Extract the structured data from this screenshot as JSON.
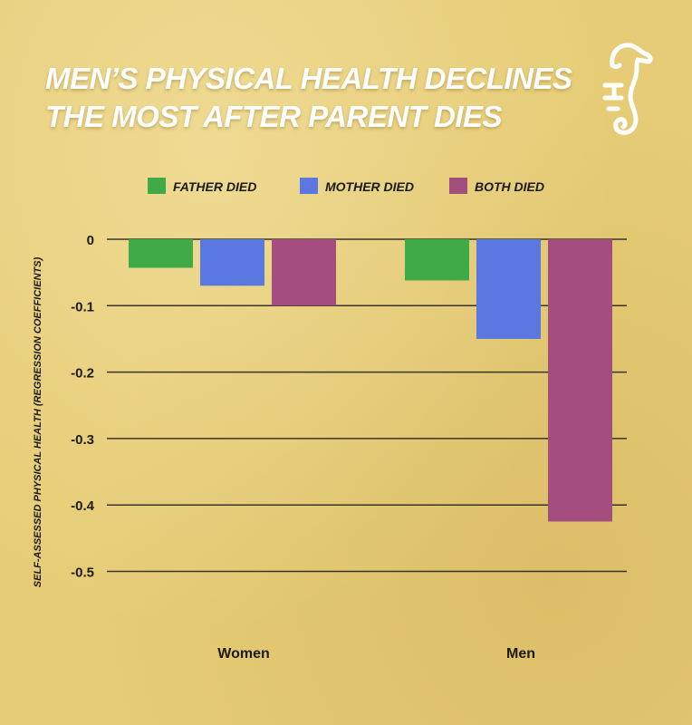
{
  "chart_data": {
    "type": "bar",
    "title": "MEN’S PHYSICAL HEALTH DECLINES THE MOST AFTER PARENT DIES",
    "title_lines": [
      "MEN’S PHYSICAL HEALTH DECLINES",
      "THE MOST AFTER PARENT DIES"
    ],
    "ylabel": "SELF-ASSESSED PHYSICAL HEALTH (REGRESSION COEFFICIENTS)",
    "xlabel": "",
    "categories": [
      "Women",
      "Men"
    ],
    "series": [
      {
        "name": "FATHER DIED",
        "color": "#3faa46",
        "values": [
          -0.043,
          -0.062
        ]
      },
      {
        "name": "MOTHER DIED",
        "color": "#5b77e0",
        "values": [
          -0.07,
          -0.15
        ]
      },
      {
        "name": "BOTH DIED",
        "color": "#a44d7f",
        "values": [
          -0.1,
          -0.425
        ]
      }
    ],
    "ylim": [
      -0.5,
      0
    ],
    "yticks": [
      0,
      -0.1,
      -0.2,
      -0.3,
      -0.4,
      -0.5
    ],
    "ytick_labels": [
      "0",
      "-0.1",
      "-0.2",
      "-0.3",
      "-0.4",
      "-0.5"
    ],
    "grid": true,
    "legend_position": "top"
  },
  "colors": {
    "background": "#e6cc76",
    "gridline": "#3a3428",
    "text": "#1c1a14",
    "title": "#ffffff"
  },
  "logo": {
    "icon": "seahorse-logo-icon"
  }
}
